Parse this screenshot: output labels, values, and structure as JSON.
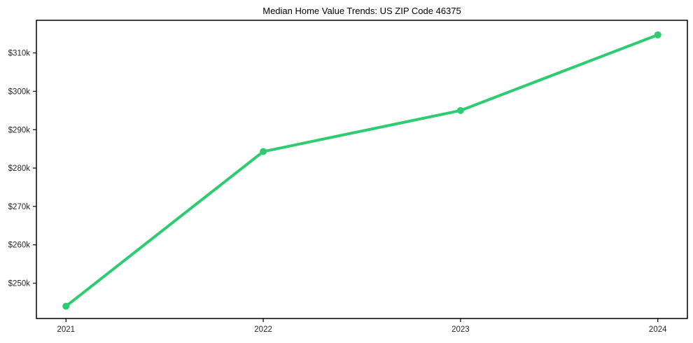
{
  "figure": {
    "background": "#ffffff"
  },
  "chart_data": {
    "type": "line",
    "title": "Median Home Value Trends: US ZIP Code 46375",
    "xlabel": "",
    "ylabel": "",
    "x": [
      2021,
      2022,
      2023,
      2024
    ],
    "x_tick_labels": [
      "2021",
      "2022",
      "2023",
      "2024"
    ],
    "series": [
      {
        "name": "median-home-value",
        "values": [
          244000,
          284300,
          295000,
          314700
        ],
        "color": "#2ecc71",
        "line_width": 4,
        "marker": "circle",
        "marker_radius": 5
      }
    ],
    "y_ticks": [
      {
        "value": 250000,
        "label": "$250k"
      },
      {
        "value": 260000,
        "label": "$260k"
      },
      {
        "value": 270000,
        "label": "$270k"
      },
      {
        "value": 280000,
        "label": "$280k"
      },
      {
        "value": 290000,
        "label": "$290k"
      },
      {
        "value": 300000,
        "label": "$300k"
      },
      {
        "value": 310000,
        "label": "$310k"
      }
    ],
    "xlim": [
      2020.85,
      2024.15
    ],
    "ylim": [
      240800,
      318500
    ],
    "grid": false,
    "legend": "none",
    "axis_color": "#000000",
    "tick_label_color": "#262626",
    "frame": "full-box"
  }
}
